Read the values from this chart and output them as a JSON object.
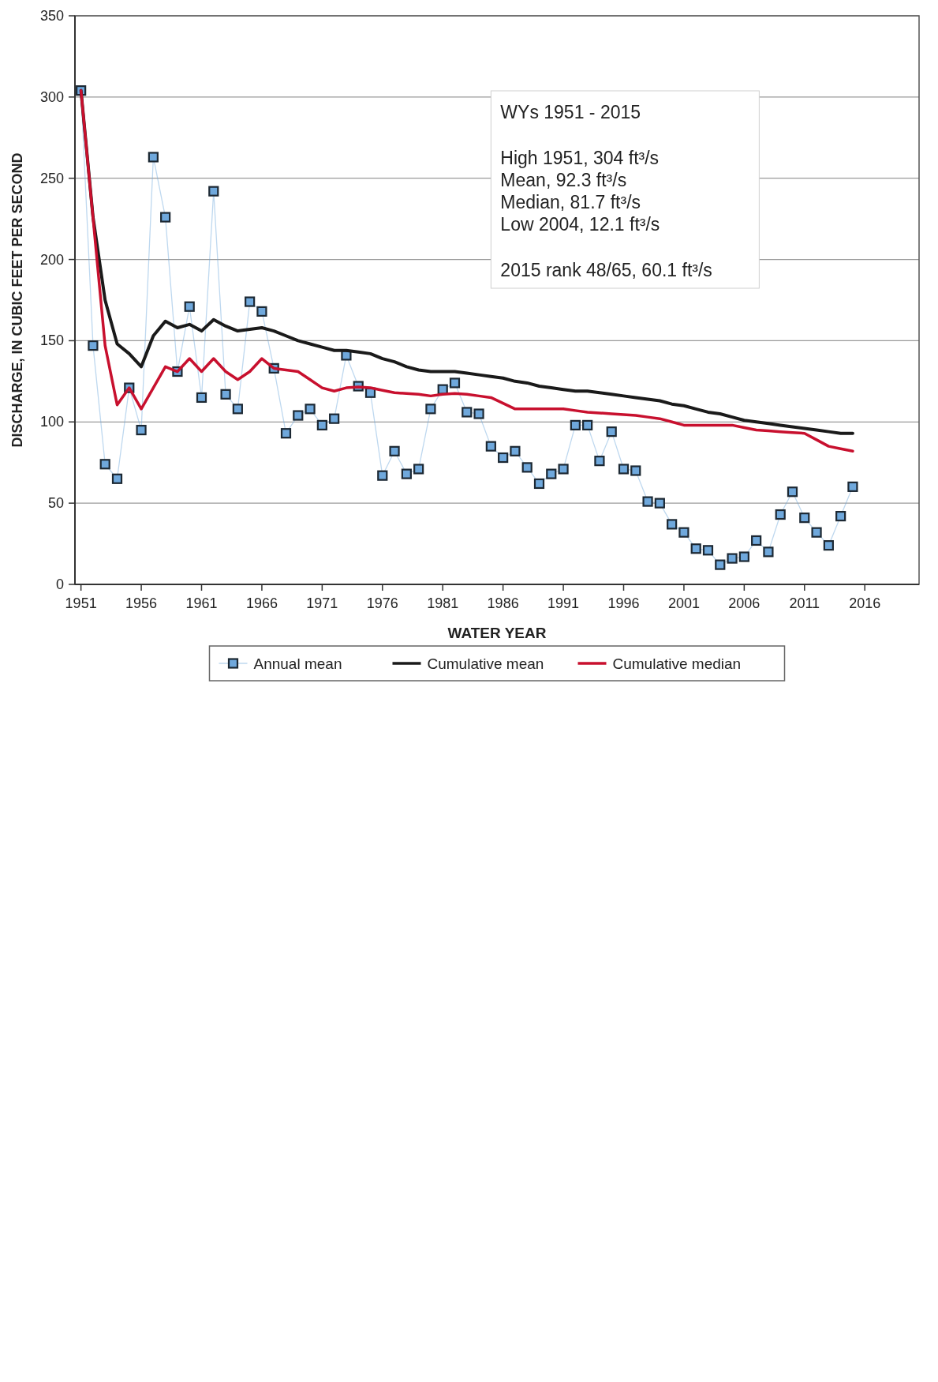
{
  "chart_data": {
    "type": "line",
    "xlabel": "WATER YEAR",
    "ylabel": "DISCHARGE, IN CUBIC FEET PER SECOND",
    "x": [
      1951,
      1952,
      1953,
      1954,
      1955,
      1956,
      1957,
      1958,
      1959,
      1960,
      1961,
      1962,
      1963,
      1964,
      1965,
      1966,
      1967,
      1968,
      1969,
      1970,
      1971,
      1972,
      1973,
      1974,
      1975,
      1976,
      1977,
      1978,
      1979,
      1980,
      1981,
      1982,
      1983,
      1984,
      1985,
      1986,
      1987,
      1988,
      1989,
      1990,
      1991,
      1992,
      1993,
      1994,
      1995,
      1996,
      1997,
      1998,
      1999,
      2000,
      2001,
      2002,
      2003,
      2004,
      2005,
      2006,
      2007,
      2008,
      2009,
      2010,
      2011,
      2012,
      2013,
      2014,
      2015
    ],
    "xlim": [
      1950.5,
      2020.5
    ],
    "xticks": [
      1951,
      1956,
      1961,
      1966,
      1971,
      1976,
      1981,
      1986,
      1991,
      1996,
      2001,
      2006,
      2011,
      2016
    ],
    "ylim": [
      0,
      350
    ],
    "yticks": [
      0,
      50,
      100,
      150,
      200,
      250,
      300,
      350
    ],
    "grid": "y",
    "legend": "bottom",
    "series": [
      {
        "name": "Annual mean",
        "color": "#6fa8dc",
        "marker": "square",
        "values": [
          304,
          147,
          74,
          65,
          121,
          95,
          263,
          226,
          131,
          171,
          115,
          242,
          117,
          108,
          174,
          168,
          133,
          93,
          104,
          108,
          98,
          102,
          141,
          122,
          118,
          67,
          82,
          68,
          71,
          108,
          120,
          124,
          106,
          105,
          85,
          78,
          82,
          72,
          62,
          68,
          71,
          98,
          98,
          76,
          94,
          71,
          70,
          51,
          50,
          37,
          32,
          22,
          21,
          12.1,
          16,
          17,
          27,
          20,
          43,
          57,
          41,
          32,
          24,
          42,
          60.1
        ]
      },
      {
        "name": "Cumulative mean",
        "color": "#1a1a1a",
        "marker": "none",
        "values": [
          304,
          226,
          175,
          148,
          142,
          134,
          153,
          162,
          158,
          160,
          156,
          163,
          159,
          156,
          157,
          158,
          156,
          153,
          150,
          148,
          146,
          144,
          144,
          143,
          142,
          139,
          137,
          134,
          132,
          131,
          131,
          131,
          130,
          129,
          128,
          127,
          125,
          124,
          122,
          121,
          120,
          119,
          119,
          118,
          117,
          116,
          115,
          114,
          113,
          111,
          110,
          108,
          106,
          105,
          103,
          101,
          100,
          99,
          98,
          97,
          96,
          95,
          94,
          93,
          93
        ]
      },
      {
        "name": "Cumulative median",
        "color": "#c8102e",
        "marker": "none",
        "values": [
          304,
          225.5,
          147,
          110.5,
          121,
          108,
          121,
          134,
          131,
          139,
          131,
          139,
          131,
          126,
          131,
          139,
          133,
          132,
          131,
          126,
          121,
          119,
          121,
          121.5,
          121,
          119.5,
          118,
          117.5,
          117,
          116,
          117,
          117.5,
          117,
          116,
          115,
          111.5,
          108,
          108,
          108,
          108,
          108,
          107,
          106,
          105.5,
          105,
          104.5,
          104,
          103,
          102,
          100,
          98,
          98,
          98,
          98,
          98,
          96.5,
          95,
          94.5,
          94,
          93.5,
          93,
          89,
          85,
          83.5,
          82
        ]
      }
    ],
    "annotations": [
      "WYs 1951 - 2015",
      "High 1951, 304 ft³/s",
      "Mean, 92.3 ft³/s",
      "Median, 81.7 ft³/s",
      "Low 2004, 12.1 ft³/s",
      "2015 rank 48/65, 60.1 ft³/s"
    ]
  }
}
